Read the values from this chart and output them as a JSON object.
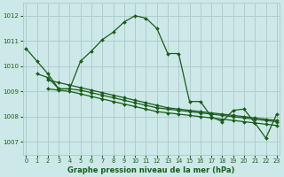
{
  "background_color": "#cce8e8",
  "grid_color": "#b0cccc",
  "line_color": "#1a5c1a",
  "marker_color": "#1a5c1a",
  "title": "Graphe pression niveau de la mer (hPa)",
  "ylim": [
    1006.5,
    1012.5
  ],
  "yticks": [
    1007,
    1008,
    1009,
    1010,
    1011,
    1012
  ],
  "xlim": [
    -0.3,
    23.3
  ],
  "xticks": [
    0,
    1,
    2,
    3,
    4,
    5,
    6,
    7,
    8,
    9,
    10,
    11,
    12,
    13,
    14,
    15,
    16,
    17,
    18,
    19,
    20,
    21,
    22,
    23
  ],
  "series": [
    {
      "x": [
        0,
        1,
        2,
        3,
        4,
        5,
        6,
        7,
        8,
        9,
        10,
        11,
        12,
        13,
        14,
        15,
        16,
        17,
        18,
        19,
        20,
        21,
        22,
        23
      ],
      "y": [
        1010.7,
        1010.2,
        1009.7,
        1009.1,
        1009.1,
        1010.2,
        1010.6,
        1011.05,
        1011.35,
        1011.75,
        1012.0,
        1011.9,
        1011.5,
        1010.5,
        1010.5,
        1008.6,
        1008.6,
        1008.0,
        1007.8,
        1008.25,
        1008.3,
        1007.75,
        1007.15,
        1008.1
      ]
    },
    {
      "x": [
        1,
        2,
        3,
        4,
        5,
        6,
        7,
        8,
        9,
        10,
        11,
        12,
        13,
        14,
        15,
        16,
        17,
        18,
        19,
        20,
        21,
        22,
        23
      ],
      "y": [
        1009.7,
        1009.55,
        1009.1,
        1009.1,
        1009.05,
        1008.95,
        1008.85,
        1008.75,
        1008.65,
        1008.55,
        1008.45,
        1008.35,
        1008.3,
        1008.25,
        1008.2,
        1008.15,
        1008.1,
        1008.05,
        1008.0,
        1007.95,
        1007.9,
        1007.85,
        1007.8
      ]
    },
    {
      "x": [
        2,
        3,
        4,
        5,
        6,
        7,
        8,
        9,
        10,
        11,
        12,
        13,
        14,
        15,
        16,
        17,
        18,
        19,
        20,
        21,
        22,
        23
      ],
      "y": [
        1009.1,
        1009.05,
        1009.0,
        1008.9,
        1008.8,
        1008.7,
        1008.6,
        1008.5,
        1008.4,
        1008.3,
        1008.2,
        1008.15,
        1008.1,
        1008.05,
        1008.0,
        1007.95,
        1007.9,
        1007.85,
        1007.8,
        1007.75,
        1007.7,
        1007.65
      ]
    },
    {
      "x": [
        2,
        3,
        4,
        5,
        6,
        7,
        8,
        9,
        10,
        11,
        12,
        13,
        14,
        15,
        16,
        17,
        18,
        19,
        20,
        21,
        22,
        23
      ],
      "y": [
        1009.45,
        1009.35,
        1009.25,
        1009.15,
        1009.05,
        1008.95,
        1008.85,
        1008.75,
        1008.65,
        1008.55,
        1008.45,
        1008.35,
        1008.3,
        1008.25,
        1008.2,
        1008.15,
        1008.1,
        1008.05,
        1008.0,
        1007.95,
        1007.9,
        1007.85
      ]
    }
  ]
}
